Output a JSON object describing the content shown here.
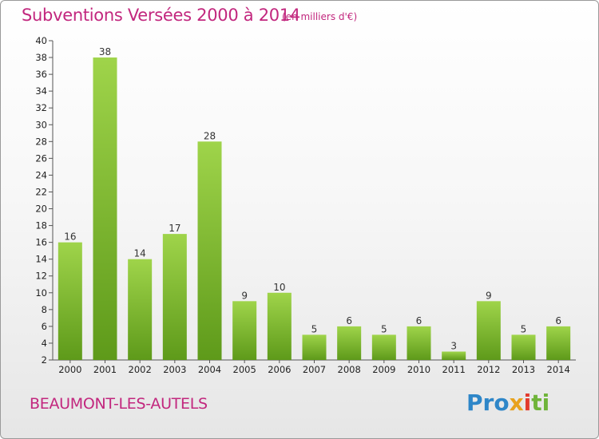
{
  "header": {
    "title": "Subventions Versées 2000 à 2014",
    "subtitle": "(en milliers d'€)"
  },
  "footer": {
    "commune": "BEAUMONT-LES-AUTELS",
    "logo": [
      "Pro",
      "x",
      "i",
      "ti"
    ]
  },
  "chart_data": {
    "type": "bar",
    "title": "Subventions Versées 2000 à 2014",
    "subtitle": "(en milliers d'€)",
    "categories": [
      "2000",
      "2001",
      "2002",
      "2003",
      "2004",
      "2005",
      "2006",
      "2007",
      "2008",
      "2009",
      "2010",
      "2011",
      "2012",
      "2013",
      "2014"
    ],
    "values": [
      16,
      38,
      14,
      17,
      28,
      9,
      10,
      5,
      6,
      5,
      6,
      3,
      9,
      5,
      6
    ],
    "ylim": [
      2,
      40
    ],
    "yticks": [
      2,
      4,
      6,
      8,
      10,
      12,
      14,
      16,
      18,
      20,
      22,
      24,
      26,
      28,
      30,
      32,
      34,
      36,
      38,
      40
    ],
    "grid": false,
    "colors": {
      "bar_light": "#9fd44a",
      "bar_dark": "#5e9a1a",
      "axis": "#555555"
    }
  }
}
